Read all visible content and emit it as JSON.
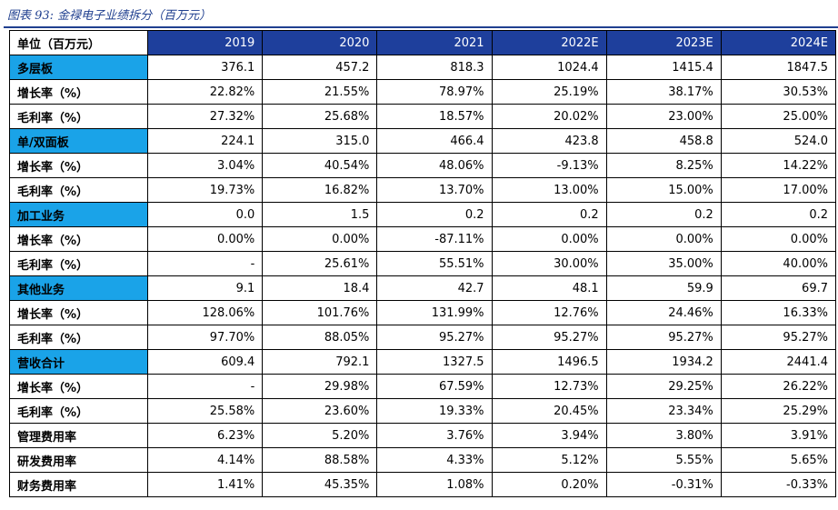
{
  "caption": "图表 93:  金禄电子业绩拆分（百万元）",
  "table": {
    "header_label": "单位（百万元）",
    "years": [
      "2019",
      "2020",
      "2021",
      "2022E",
      "2023E",
      "2024E"
    ],
    "rows": [
      {
        "label": "多层板",
        "segment": true,
        "values": [
          "376.1",
          "457.2",
          "818.3",
          "1024.4",
          "1415.4",
          "1847.5"
        ]
      },
      {
        "label": "增长率（%）",
        "segment": false,
        "values": [
          "22.82%",
          "21.55%",
          "78.97%",
          "25.19%",
          "38.17%",
          "30.53%"
        ]
      },
      {
        "label": "毛利率（%）",
        "segment": false,
        "values": [
          "27.32%",
          "25.68%",
          "18.57%",
          "20.02%",
          "23.00%",
          "25.00%"
        ]
      },
      {
        "label": "单/双面板",
        "segment": true,
        "values": [
          "224.1",
          "315.0",
          "466.4",
          "423.8",
          "458.8",
          "524.0"
        ]
      },
      {
        "label": "增长率（%）",
        "segment": false,
        "values": [
          "3.04%",
          "40.54%",
          "48.06%",
          "-9.13%",
          "8.25%",
          "14.22%"
        ]
      },
      {
        "label": "毛利率（%）",
        "segment": false,
        "values": [
          "19.73%",
          "16.82%",
          "13.70%",
          "13.00%",
          "15.00%",
          "17.00%"
        ]
      },
      {
        "label": "加工业务",
        "segment": true,
        "values": [
          "0.0",
          "1.5",
          "0.2",
          "0.2",
          "0.2",
          "0.2"
        ]
      },
      {
        "label": "增长率（%）",
        "segment": false,
        "values": [
          "0.00%",
          "0.00%",
          "-87.11%",
          "0.00%",
          "0.00%",
          "0.00%"
        ]
      },
      {
        "label": "毛利率（%）",
        "segment": false,
        "values": [
          "-",
          "25.61%",
          "55.51%",
          "30.00%",
          "35.00%",
          "40.00%"
        ]
      },
      {
        "label": "其他业务",
        "segment": true,
        "values": [
          "9.1",
          "18.4",
          "42.7",
          "48.1",
          "59.9",
          "69.7"
        ]
      },
      {
        "label": "增长率（%）",
        "segment": false,
        "values": [
          "128.06%",
          "101.76%",
          "131.99%",
          "12.76%",
          "24.46%",
          "16.33%"
        ]
      },
      {
        "label": "毛利率（%）",
        "segment": false,
        "values": [
          "97.70%",
          "88.05%",
          "95.27%",
          "95.27%",
          "95.27%",
          "95.27%"
        ]
      },
      {
        "label": "营收合计",
        "segment": true,
        "values": [
          "609.4",
          "792.1",
          "1327.5",
          "1496.5",
          "1934.2",
          "2441.4"
        ]
      },
      {
        "label": "增长率（%）",
        "segment": false,
        "values": [
          "-",
          "29.98%",
          "67.59%",
          "12.73%",
          "29.25%",
          "26.22%"
        ]
      },
      {
        "label": "毛利率（%）",
        "segment": false,
        "values": [
          "25.58%",
          "23.60%",
          "19.33%",
          "20.45%",
          "23.34%",
          "25.29%"
        ]
      },
      {
        "label": "管理费用率",
        "segment": false,
        "values": [
          "6.23%",
          "5.20%",
          "3.76%",
          "3.94%",
          "3.80%",
          "3.91%"
        ]
      },
      {
        "label": "研发费用率",
        "segment": false,
        "values": [
          "4.14%",
          "88.58%",
          "4.33%",
          "5.12%",
          "5.55%",
          "5.65%"
        ]
      },
      {
        "label": "财务费用率",
        "segment": false,
        "values": [
          "1.41%",
          "45.35%",
          "1.08%",
          "0.20%",
          "-0.31%",
          "-0.33%"
        ]
      }
    ]
  },
  "colors": {
    "header_bg": "#1e3f9c",
    "segment_bg": "#1aa3e8",
    "caption_text": "#1f3f8f"
  }
}
